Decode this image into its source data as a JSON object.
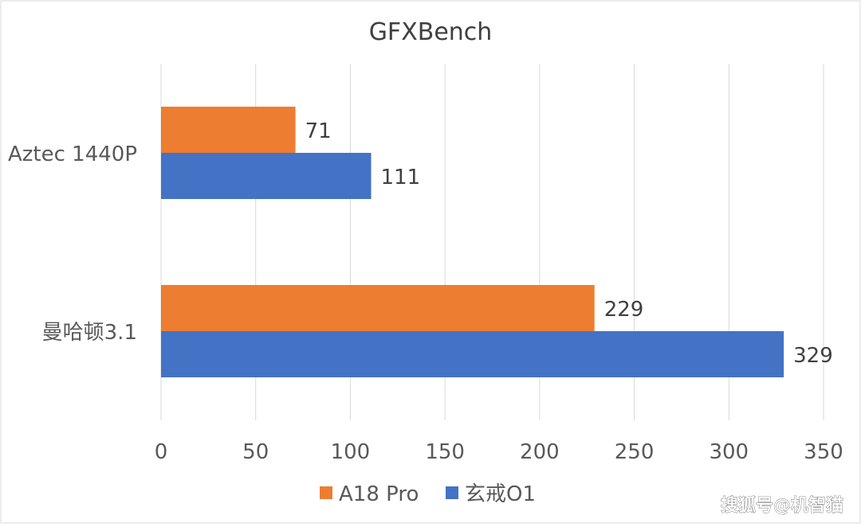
{
  "chart_data": {
    "type": "bar",
    "orientation": "horizontal",
    "title": "GFXBench",
    "categories": [
      "Aztec 1440P",
      "曼哈顿3.1"
    ],
    "series": [
      {
        "name": "A18 Pro",
        "values": [
          71,
          229
        ],
        "color": "#ED7D31"
      },
      {
        "name": "玄戒O1",
        "values": [
          111,
          329
        ],
        "color": "#4472C4"
      }
    ],
    "xlim": [
      0,
      350
    ],
    "x_ticks": [
      "0",
      "50",
      "100",
      "150",
      "200",
      "250",
      "300",
      "350"
    ],
    "grid": true,
    "legend_position": "bottom",
    "xlabel": "",
    "ylabel": ""
  },
  "watermark": "搜狐号@机智猫"
}
